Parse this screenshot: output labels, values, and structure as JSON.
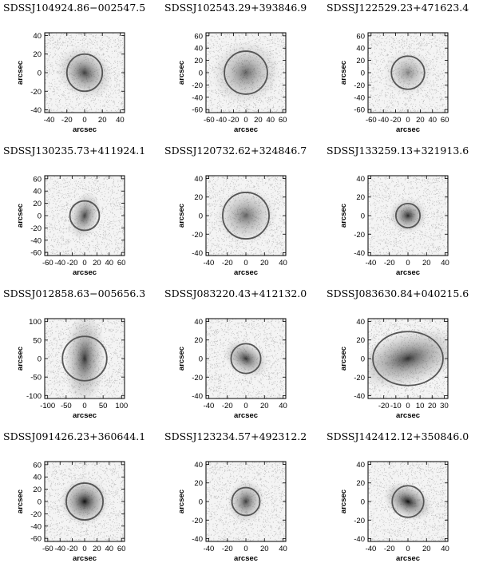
{
  "figure": {
    "axis_unit_label": "arcsec",
    "panels": [
      {
        "title": "SDSSJ104924.86−002547.5",
        "xlim": [
          -45,
          45
        ],
        "ylim": [
          -43,
          43
        ],
        "xticks": [
          -40,
          -20,
          0,
          20,
          40
        ],
        "yticks": [
          -40,
          -20,
          0,
          20,
          40
        ],
        "radius": 20,
        "halo": 30,
        "elong": 1.25,
        "angle": -35,
        "bright": 0.75
      },
      {
        "title": "SDSSJ102543.29+393846.9",
        "xlim": [
          -65,
          65
        ],
        "ylim": [
          -65,
          65
        ],
        "xticks": [
          -60,
          -40,
          -20,
          0,
          20,
          40,
          60
        ],
        "yticks": [
          -60,
          -40,
          -20,
          0,
          20,
          40,
          60
        ],
        "radius": 35,
        "halo": 55,
        "elong": 1.1,
        "angle": 20,
        "bright": 0.6
      },
      {
        "title": "SDSSJ122529.23+471623.4",
        "xlim": [
          -65,
          65
        ],
        "ylim": [
          -65,
          65
        ],
        "xticks": [
          -60,
          -40,
          -20,
          0,
          20,
          40,
          60
        ],
        "yticks": [
          -60,
          -40,
          -20,
          0,
          20,
          40,
          60
        ],
        "radius": 27,
        "halo": 40,
        "elong": 1.05,
        "angle": 0,
        "bright": 0.45
      },
      {
        "title": "SDSSJ130235.73+411924.1",
        "xlim": [
          -65,
          65
        ],
        "ylim": [
          -65,
          65
        ],
        "xticks": [
          -60,
          -40,
          -20,
          0,
          20,
          40,
          60
        ],
        "yticks": [
          -60,
          -40,
          -20,
          0,
          20,
          40,
          60
        ],
        "radius": 24,
        "halo": 32,
        "elong": 1.6,
        "angle": 75,
        "bright": 0.75
      },
      {
        "title": "SDSSJ120732.62+324846.7",
        "xlim": [
          -43,
          43
        ],
        "ylim": [
          -43,
          43
        ],
        "xticks": [
          -40,
          -20,
          0,
          20,
          40
        ],
        "yticks": [
          -40,
          -20,
          0,
          20,
          40
        ],
        "radius": 25,
        "halo": 32,
        "elong": 1.1,
        "angle": 10,
        "bright": 0.6
      },
      {
        "title": "SDSSJ133259.13+321913.6",
        "xlim": [
          -43,
          43
        ],
        "ylim": [
          -43,
          43
        ],
        "xticks": [
          -40,
          -20,
          0,
          20,
          40
        ],
        "yticks": [
          -40,
          -20,
          0,
          20,
          40
        ],
        "radius": 13,
        "halo": 20,
        "elong": 1.1,
        "angle": 0,
        "bright": 0.85
      },
      {
        "title": "SDSSJ012858.63−005656.3",
        "xlim": [
          -108,
          108
        ],
        "ylim": [
          -108,
          108
        ],
        "xticks": [
          -100,
          -50,
          0,
          50,
          100
        ],
        "yticks": [
          -100,
          -50,
          0,
          50,
          100
        ],
        "radius": 60,
        "halo": 85,
        "elong": 2.2,
        "angle": 88,
        "bright": 0.8
      },
      {
        "title": "SDSSJ083220.43+412132.0",
        "xlim": [
          -43,
          43
        ],
        "ylim": [
          -43,
          43
        ],
        "xticks": [
          -40,
          -20,
          0,
          20,
          40
        ],
        "yticks": [
          -40,
          -20,
          0,
          20,
          40
        ],
        "radius": 16,
        "halo": 22,
        "elong": 1.4,
        "angle": -30,
        "bright": 0.8
      },
      {
        "title": "SDSSJ083630.84+040215.6",
        "xlim": [
          -33,
          33
        ],
        "ylim": [
          -43,
          43
        ],
        "xticks": [
          -20,
          -10,
          0,
          10,
          20,
          30
        ],
        "yticks": [
          -40,
          -20,
          0,
          20,
          40
        ],
        "radius": 29,
        "halo": 38,
        "elong": 1.5,
        "angle": 15,
        "bright": 0.8
      },
      {
        "title": "SDSSJ091426.23+360644.1",
        "xlim": [
          -65,
          65
        ],
        "ylim": [
          -65,
          65
        ],
        "xticks": [
          -60,
          -40,
          -20,
          0,
          20,
          40,
          60
        ],
        "yticks": [
          -60,
          -40,
          -20,
          0,
          20,
          40,
          60
        ],
        "radius": 30,
        "halo": 40,
        "elong": 1.05,
        "angle": 0,
        "bright": 0.95
      },
      {
        "title": "SDSSJ123234.57+492312.2",
        "xlim": [
          -43,
          43
        ],
        "ylim": [
          -43,
          43
        ],
        "xticks": [
          -40,
          -20,
          0,
          20,
          40
        ],
        "yticks": [
          -40,
          -20,
          0,
          20,
          40
        ],
        "radius": 15,
        "halo": 22,
        "elong": 1.2,
        "angle": 80,
        "bright": 0.75
      },
      {
        "title": "SDSSJ142412.12+350846.0",
        "xlim": [
          -43,
          43
        ],
        "ylim": [
          -43,
          43
        ],
        "xticks": [
          -40,
          -20,
          0,
          20,
          40
        ],
        "yticks": [
          -40,
          -20,
          0,
          20,
          40
        ],
        "radius": 17,
        "halo": 23,
        "elong": 1.5,
        "angle": -25,
        "bright": 0.95
      }
    ]
  }
}
